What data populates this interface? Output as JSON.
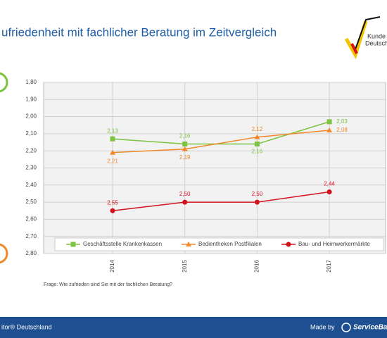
{
  "header": {
    "title": "ufriedenheit mit fachlicher Beratung im Zeitvergleich",
    "logo_line1": "Kunde",
    "logo_line2": "Deutsch"
  },
  "chart_data": {
    "type": "line",
    "categories": [
      "2014",
      "2015",
      "2016",
      "2017"
    ],
    "ylim": [
      2.8,
      1.8
    ],
    "yticks": [
      {
        "value": 1.8,
        "label": "1,80"
      },
      {
        "value": 1.9,
        "label": "1,90"
      },
      {
        "value": 2.0,
        "label": "2,00"
      },
      {
        "value": 2.1,
        "label": "2,10"
      },
      {
        "value": 2.2,
        "label": "2,20"
      },
      {
        "value": 2.3,
        "label": "2,30"
      },
      {
        "value": 2.4,
        "label": "2,40"
      },
      {
        "value": 2.5,
        "label": "2,50"
      },
      {
        "value": 2.6,
        "label": "2,60"
      },
      {
        "value": 2.7,
        "label": "2,70"
      },
      {
        "value": 2.8,
        "label": "2,80"
      }
    ],
    "grid": true,
    "legend": "bottom",
    "series": [
      {
        "name": "Geschäftsstelle Krankenkassen",
        "color": "#7dc242",
        "marker": "square",
        "values": [
          2.13,
          2.16,
          2.16,
          2.03
        ],
        "value_labels": [
          "2,13",
          "2,16",
          "2,16",
          "2,03"
        ]
      },
      {
        "name": "Bedientheken Postfilialen",
        "color": "#f0892a",
        "marker": "triangle",
        "values": [
          2.21,
          2.19,
          2.12,
          2.08
        ],
        "value_labels": [
          "2,21",
          "2,19",
          "2,12",
          "2,08"
        ]
      },
      {
        "name": "Bau- und Heimwerkermärkte",
        "color": "#d4121e",
        "marker": "circle",
        "values": [
          2.55,
          2.5,
          2.5,
          2.44
        ],
        "value_labels": [
          "2,55",
          "2,50",
          "2,50",
          "2,44"
        ]
      }
    ]
  },
  "note": "Frage: Wie zufrieden sind Sie mit der fachlichen Beratung?",
  "footer": {
    "left": "itor® Deutschland",
    "made_by": "Made by",
    "brand": "ServiceBa"
  }
}
